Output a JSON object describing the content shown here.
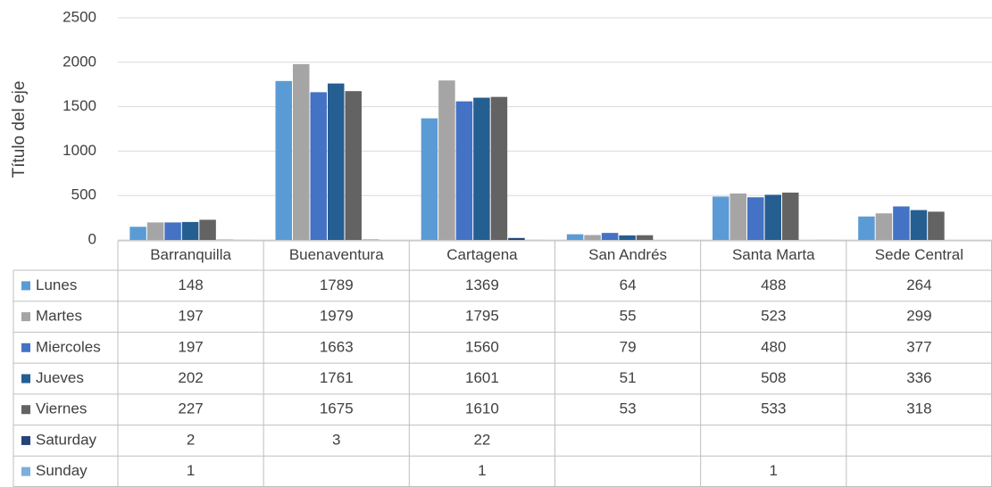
{
  "chart_data": {
    "type": "bar",
    "y_label": "Título del eje",
    "categories": [
      "Barranquilla",
      "Buenaventura",
      "Cartagena",
      "San Andrés",
      "Santa Marta",
      "Sede Central"
    ],
    "series": [
      {
        "name": "Lunes",
        "color": "#5b9bd5",
        "values": [
          148,
          1789,
          1369,
          64,
          488,
          264
        ]
      },
      {
        "name": "Martes",
        "color": "#a5a5a5",
        "values": [
          197,
          1979,
          1795,
          55,
          523,
          299
        ]
      },
      {
        "name": "Miercoles",
        "color": "#4472c4",
        "values": [
          197,
          1663,
          1560,
          79,
          480,
          377
        ]
      },
      {
        "name": "Jueves",
        "color": "#255e91",
        "values": [
          202,
          1761,
          1601,
          51,
          508,
          336
        ]
      },
      {
        "name": "Viernes",
        "color": "#636363",
        "values": [
          227,
          1675,
          1610,
          53,
          533,
          318
        ]
      },
      {
        "name": "Saturday",
        "color": "#264478",
        "values": [
          2,
          3,
          22,
          null,
          null,
          null
        ]
      },
      {
        "name": "Sunday",
        "color": "#7cafdd",
        "values": [
          1,
          null,
          1,
          null,
          1,
          null
        ]
      }
    ],
    "ylim": [
      0,
      2500
    ],
    "yticks": [
      0,
      500,
      1000,
      1500,
      2000,
      2500
    ],
    "grid": true
  }
}
